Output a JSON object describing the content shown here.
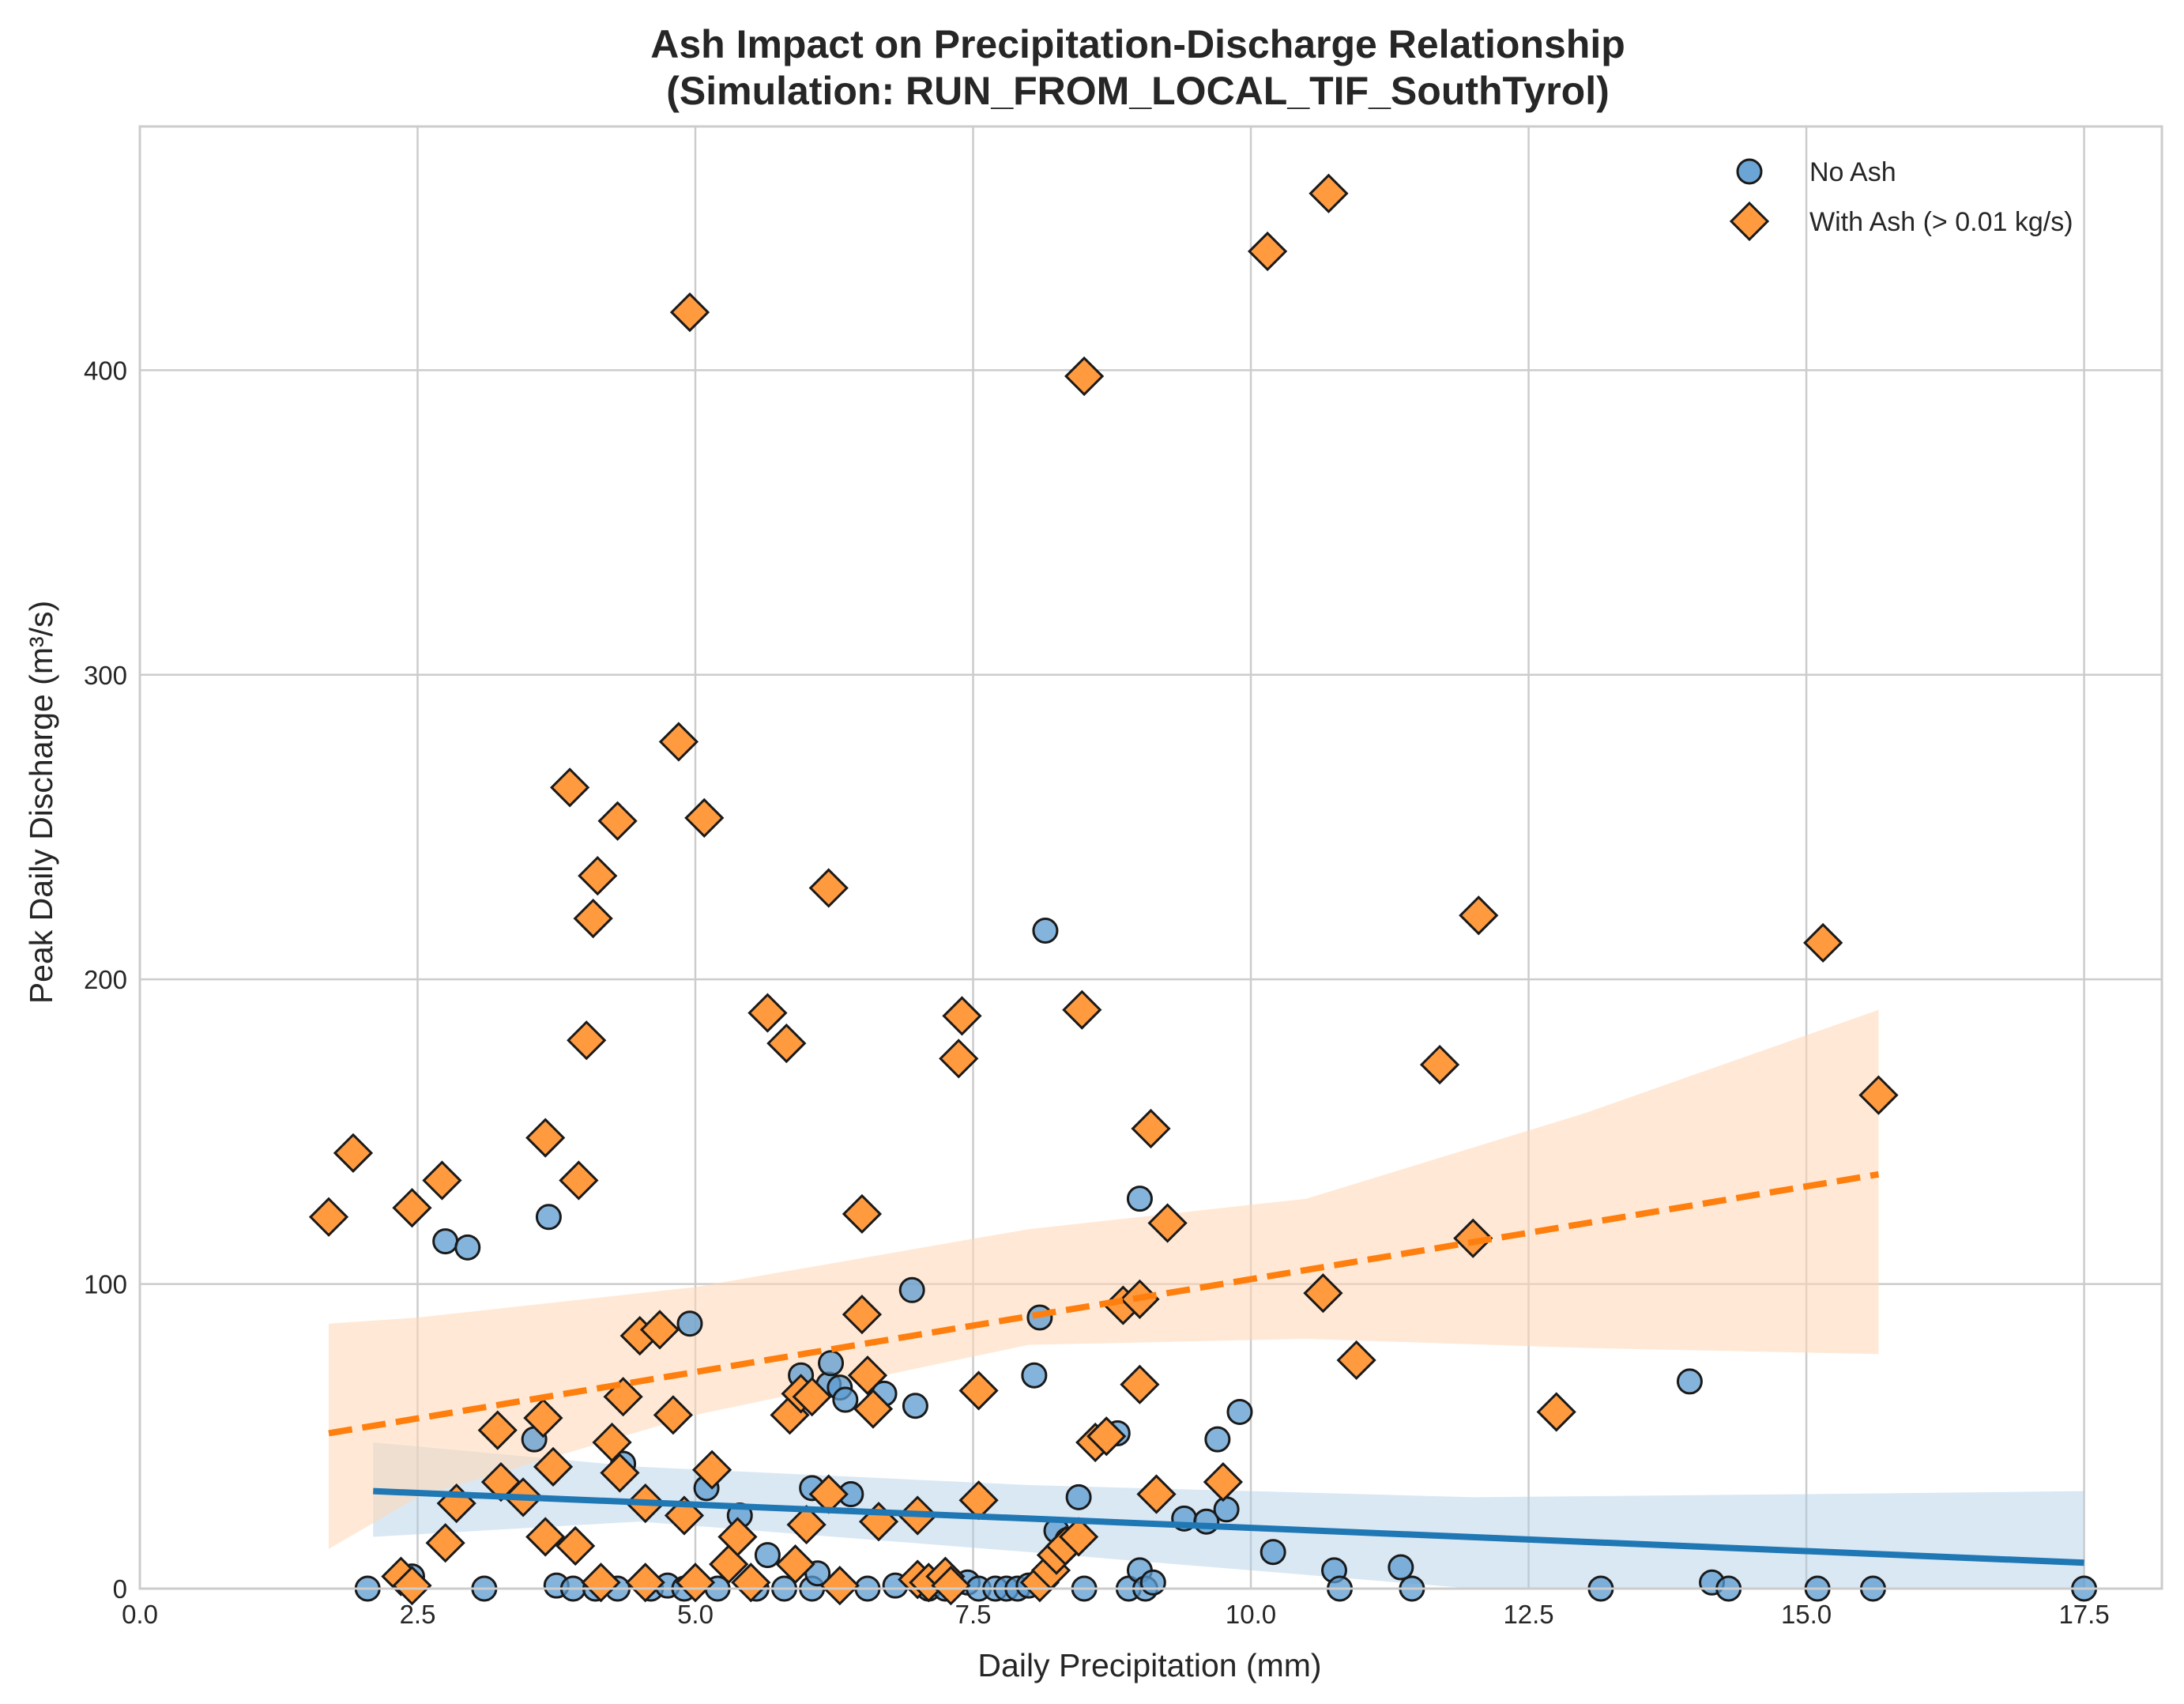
{
  "chart_data": {
    "type": "scatter",
    "title": "Ash Impact on Precipitation-Discharge Relationship",
    "subtitle": "(Simulation: RUN_FROM_LOCAL_TIF_SouthTyrol)",
    "xlabel": "Daily Precipitation (mm)",
    "ylabel": "Peak Daily Discharge (m³/s)",
    "xlim": [
      0,
      18.2
    ],
    "ylim": [
      0,
      480
    ],
    "xticks": [
      0,
      2.5,
      5,
      7.5,
      10,
      12.5,
      15,
      17.5
    ],
    "xtick_labels": [
      "0.0",
      "2.5",
      "5.0",
      "7.5",
      "10.0",
      "12.5",
      "15.0",
      "17.5"
    ],
    "yticks": [
      0,
      100,
      200,
      300,
      400
    ],
    "ytick_labels": [
      "0",
      "100",
      "200",
      "300",
      "400"
    ],
    "grid": true,
    "legend_position": "top-right",
    "series": [
      {
        "name": "No Ash",
        "marker": "circle",
        "color": "#1f77b4",
        "fill": "#5b9bd0",
        "trend": {
          "x": [
            2.1,
            17.5
          ],
          "y": [
            32,
            8.5
          ],
          "style": "solid"
        },
        "band": {
          "x": [
            2.1,
            4.5,
            8,
            12,
            15,
            17.5
          ],
          "lower": [
            17,
            22,
            12,
            0,
            0,
            0
          ],
          "upper": [
            48,
            40,
            34,
            30,
            31,
            32
          ]
        },
        "points": [
          [
            2.05,
            0
          ],
          [
            2.45,
            4
          ],
          [
            2.75,
            114
          ],
          [
            2.95,
            112
          ],
          [
            3.1,
            0
          ],
          [
            3.55,
            49
          ],
          [
            3.68,
            122
          ],
          [
            3.75,
            1
          ],
          [
            3.9,
            0
          ],
          [
            4.1,
            0
          ],
          [
            4.3,
            0
          ],
          [
            4.35,
            41
          ],
          [
            4.6,
            0
          ],
          [
            4.75,
            1
          ],
          [
            4.9,
            0
          ],
          [
            4.95,
            87
          ],
          [
            5.1,
            33
          ],
          [
            5.2,
            0
          ],
          [
            5.4,
            24
          ],
          [
            5.55,
            0
          ],
          [
            5.65,
            11
          ],
          [
            5.8,
            0
          ],
          [
            5.95,
            70
          ],
          [
            6.05,
            33
          ],
          [
            6.05,
            0
          ],
          [
            6.1,
            5
          ],
          [
            6.2,
            67
          ],
          [
            6.22,
            74
          ],
          [
            6.3,
            66
          ],
          [
            6.35,
            62
          ],
          [
            6.4,
            31
          ],
          [
            6.55,
            0
          ],
          [
            6.7,
            64
          ],
          [
            6.8,
            1
          ],
          [
            6.95,
            98
          ],
          [
            6.98,
            60
          ],
          [
            7.1,
            0
          ],
          [
            7.25,
            0
          ],
          [
            7.45,
            2
          ],
          [
            7.55,
            0
          ],
          [
            7.7,
            0
          ],
          [
            7.8,
            0
          ],
          [
            7.9,
            0
          ],
          [
            8.0,
            1
          ],
          [
            8.05,
            70
          ],
          [
            8.1,
            89
          ],
          [
            8.15,
            216
          ],
          [
            8.25,
            19
          ],
          [
            8.35,
            16
          ],
          [
            8.45,
            30
          ],
          [
            8.5,
            0
          ],
          [
            8.8,
            51
          ],
          [
            8.9,
            0
          ],
          [
            9.0,
            128
          ],
          [
            9.0,
            6
          ],
          [
            9.05,
            0
          ],
          [
            9.12,
            2
          ],
          [
            9.4,
            23
          ],
          [
            9.6,
            22
          ],
          [
            9.7,
            49
          ],
          [
            9.78,
            26
          ],
          [
            9.9,
            58
          ],
          [
            10.2,
            12
          ],
          [
            10.75,
            6
          ],
          [
            10.8,
            0
          ],
          [
            11.35,
            7
          ],
          [
            11.45,
            0
          ],
          [
            13.15,
            0
          ],
          [
            13.95,
            68
          ],
          [
            14.15,
            2
          ],
          [
            14.3,
            0
          ],
          [
            15.1,
            0
          ],
          [
            15.6,
            0
          ],
          [
            17.5,
            0
          ]
        ]
      },
      {
        "name": "With Ash (> 0.01 kg/s)",
        "marker": "diamond",
        "color": "#ff7f0e",
        "fill": "#ff9a3f",
        "trend": {
          "x": [
            1.7,
            15.65
          ],
          "y": [
            51,
            136
          ],
          "style": "dashed"
        },
        "band": {
          "x": [
            1.7,
            2.5,
            5,
            8,
            10.5,
            13,
            15.65
          ],
          "lower": [
            13,
            30,
            57,
            80,
            82,
            79,
            77
          ],
          "upper": [
            87,
            89,
            99,
            118,
            128,
            156,
            190
          ]
        },
        "points": [
          [
            1.7,
            122
          ],
          [
            1.92,
            143
          ],
          [
            2.35,
            4
          ],
          [
            2.45,
            1
          ],
          [
            2.45,
            125
          ],
          [
            2.72,
            134
          ],
          [
            2.75,
            15
          ],
          [
            2.85,
            28
          ],
          [
            3.22,
            52
          ],
          [
            3.25,
            35
          ],
          [
            3.45,
            30
          ],
          [
            3.63,
            56
          ],
          [
            3.65,
            148
          ],
          [
            3.65,
            17
          ],
          [
            3.72,
            40
          ],
          [
            3.87,
            263
          ],
          [
            3.92,
            14
          ],
          [
            3.95,
            134
          ],
          [
            4.02,
            180
          ],
          [
            4.08,
            220
          ],
          [
            4.12,
            234
          ],
          [
            4.15,
            2
          ],
          [
            4.25,
            48
          ],
          [
            4.3,
            252
          ],
          [
            4.32,
            38
          ],
          [
            4.35,
            63
          ],
          [
            4.5,
            83
          ],
          [
            4.55,
            28
          ],
          [
            4.55,
            2
          ],
          [
            4.68,
            85
          ],
          [
            4.8,
            57
          ],
          [
            4.85,
            278
          ],
          [
            4.9,
            24
          ],
          [
            4.95,
            419
          ],
          [
            5.0,
            2
          ],
          [
            5.08,
            253
          ],
          [
            5.15,
            39
          ],
          [
            5.3,
            8
          ],
          [
            5.38,
            17
          ],
          [
            5.5,
            2
          ],
          [
            5.65,
            189
          ],
          [
            5.82,
            179
          ],
          [
            5.85,
            57
          ],
          [
            5.9,
            8
          ],
          [
            5.95,
            64
          ],
          [
            6.0,
            21
          ],
          [
            6.05,
            63
          ],
          [
            6.2,
            230
          ],
          [
            6.2,
            31
          ],
          [
            6.3,
            1
          ],
          [
            6.5,
            123
          ],
          [
            6.5,
            90
          ],
          [
            6.55,
            70
          ],
          [
            6.6,
            59
          ],
          [
            6.65,
            22
          ],
          [
            7.0,
            24
          ],
          [
            7.0,
            3
          ],
          [
            7.1,
            2
          ],
          [
            7.25,
            4
          ],
          [
            7.3,
            1
          ],
          [
            7.37,
            174
          ],
          [
            7.4,
            188
          ],
          [
            7.55,
            29
          ],
          [
            7.55,
            65
          ],
          [
            8.1,
            2
          ],
          [
            8.2,
            6
          ],
          [
            8.25,
            11
          ],
          [
            8.33,
            14
          ],
          [
            8.45,
            17
          ],
          [
            8.48,
            190
          ],
          [
            8.5,
            398
          ],
          [
            8.6,
            48
          ],
          [
            8.7,
            50
          ],
          [
            8.85,
            93
          ],
          [
            9.0,
            95
          ],
          [
            9.0,
            67
          ],
          [
            9.1,
            151
          ],
          [
            9.15,
            31
          ],
          [
            9.25,
            120
          ],
          [
            9.75,
            35
          ],
          [
            10.15,
            439
          ],
          [
            10.65,
            97
          ],
          [
            10.7,
            458
          ],
          [
            10.95,
            75
          ],
          [
            11.7,
            172
          ],
          [
            12.0,
            115
          ],
          [
            12.05,
            221
          ],
          [
            12.75,
            58
          ],
          [
            15.15,
            212
          ],
          [
            15.65,
            162
          ]
        ]
      }
    ]
  }
}
